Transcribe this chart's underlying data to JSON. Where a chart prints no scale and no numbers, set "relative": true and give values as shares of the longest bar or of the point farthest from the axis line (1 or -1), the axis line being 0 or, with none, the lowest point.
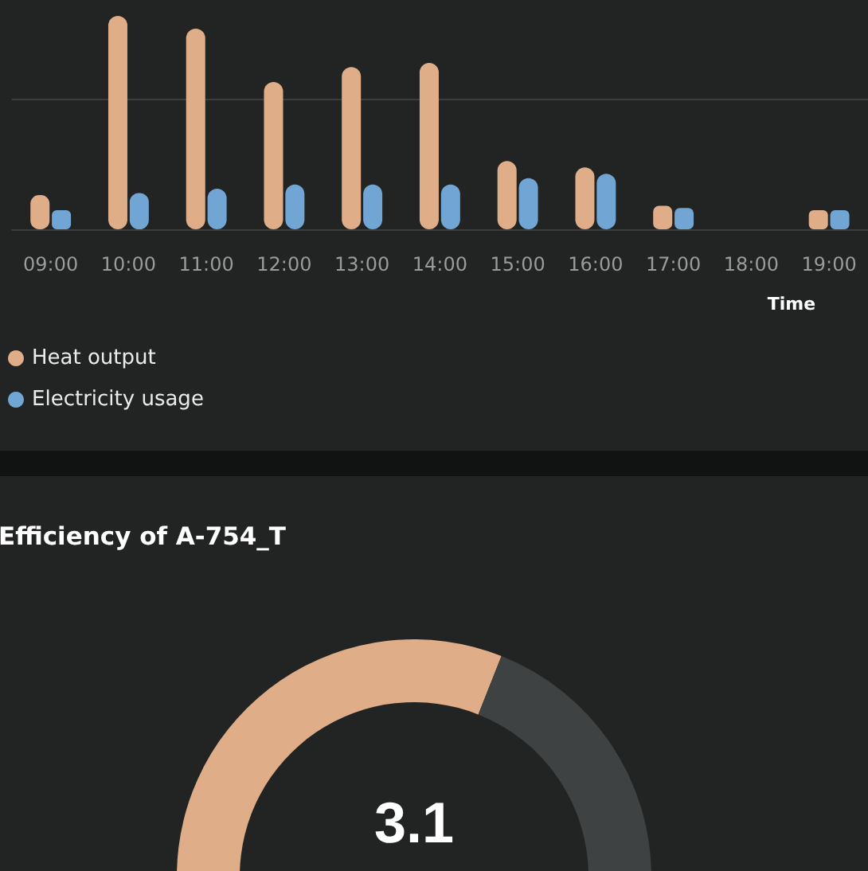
{
  "chart_data": [
    {
      "type": "bar",
      "relative": true,
      "xlabel": "Time",
      "categories": [
        "09:00",
        "10:00",
        "11:00",
        "12:00",
        "13:00",
        "14:00",
        "15:00",
        "16:00",
        "17:00",
        "18:00",
        "19:00"
      ],
      "series": [
        {
          "name": "Heat output",
          "color": "#dfae89",
          "values": [
            0.16,
            1,
            0.94,
            0.69,
            0.76,
            0.78,
            0.32,
            0.29,
            0.11,
            null,
            0.09
          ]
        },
        {
          "name": "Electricity usage",
          "color": "#71a5d3",
          "values": [
            0.09,
            0.17,
            0.19,
            0.21,
            0.21,
            0.21,
            0.24,
            0.26,
            0.1,
            null,
            0.09
          ]
        }
      ],
      "ref_lines": [
        {
          "axis": "y",
          "value": 0.61,
          "color": "#3b3d3d"
        }
      ],
      "legend": "bottom left"
    },
    {
      "type": "donut",
      "title": "Efficiency of A-754_T",
      "categories": [
        null,
        null
      ],
      "values": [
        62,
        38
      ],
      "colors": [
        "#dfae89",
        "#3f4242"
      ],
      "annotations": [
        "3.1"
      ]
    }
  ]
}
